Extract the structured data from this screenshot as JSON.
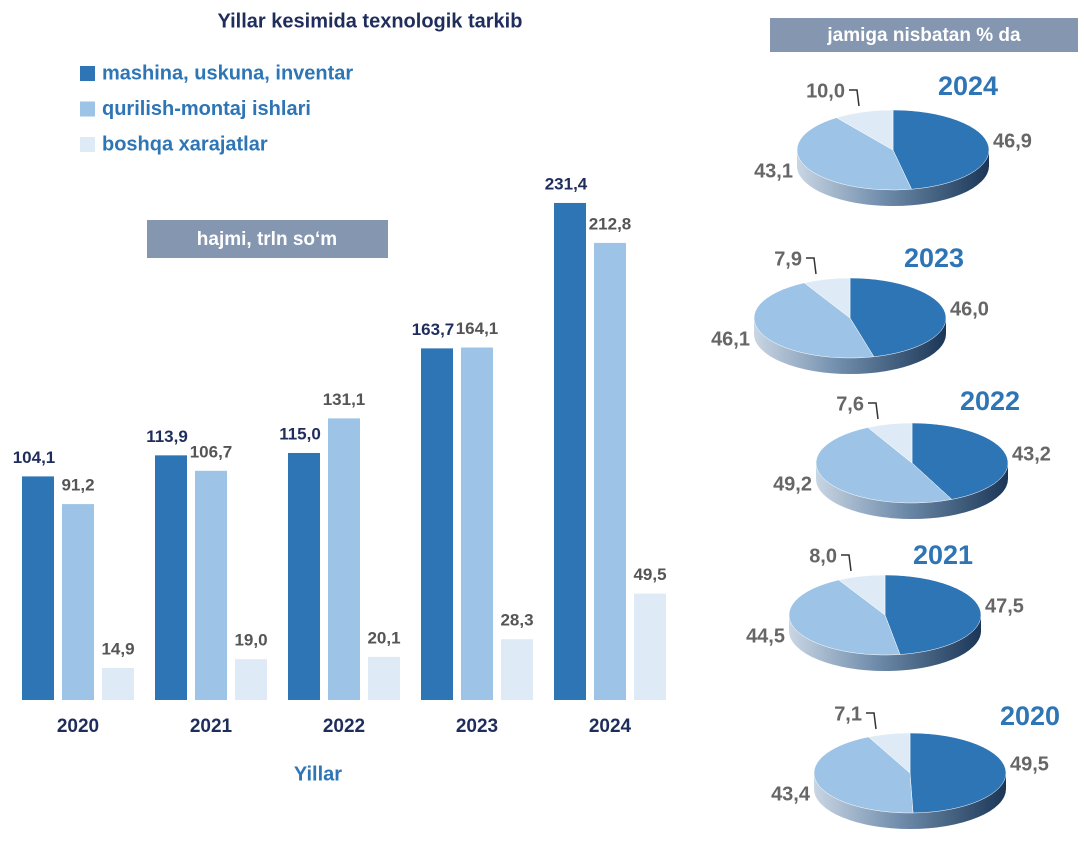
{
  "chart_data": [
    {
      "type": "bar",
      "title": "Yillar kesimida texnologik tarkib",
      "subtitle": "hajmi, trln so‘m",
      "x_label": "Yillar",
      "categories": [
        "2020",
        "2021",
        "2022",
        "2023",
        "2024"
      ],
      "ylim": [
        0,
        250
      ],
      "series": [
        {
          "name": "mashina, uskuna, inventar",
          "color": "#2e75b6",
          "values": [
            104.1,
            113.9,
            115.0,
            163.7,
            231.4
          ],
          "value_labels": [
            "104,1",
            "113,9",
            "115,0",
            "163,7",
            "231,4"
          ]
        },
        {
          "name": "qurilish-montaj ishlari",
          "color": "#9dc3e6",
          "values": [
            91.2,
            106.7,
            131.1,
            164.1,
            212.8
          ],
          "value_labels": [
            "91,2",
            "106,7",
            "131,1",
            "164,1",
            "212,8"
          ]
        },
        {
          "name": "boshqa xarajatlar",
          "color": "#deebf7",
          "values": [
            14.9,
            19.0,
            20.1,
            28.3,
            49.5
          ],
          "value_labels": [
            "14,9",
            "19,0",
            "20,1",
            "28,3",
            "49,5"
          ]
        }
      ]
    },
    {
      "type": "pie",
      "caption": "jamiga nisbatan % da",
      "title": "2024",
      "values": [
        46.9,
        43.1,
        10.0
      ],
      "value_labels": [
        "46,9",
        "43,1",
        "10,0"
      ],
      "colors": [
        "#2e75b6",
        "#9dc3e6",
        "#deebf7"
      ]
    },
    {
      "type": "pie",
      "title": "2023",
      "values": [
        46.0,
        46.1,
        7.9
      ],
      "value_labels": [
        "46,0",
        "46,1",
        "7,9"
      ],
      "colors": [
        "#2e75b6",
        "#9dc3e6",
        "#deebf7"
      ]
    },
    {
      "type": "pie",
      "title": "2022",
      "values": [
        43.2,
        49.2,
        7.6
      ],
      "value_labels": [
        "43,2",
        "49,2",
        "7,6"
      ],
      "colors": [
        "#2e75b6",
        "#9dc3e6",
        "#deebf7"
      ]
    },
    {
      "type": "pie",
      "title": "2021",
      "values": [
        47.5,
        44.5,
        8.0
      ],
      "value_labels": [
        "47,5",
        "44,5",
        "8,0"
      ],
      "colors": [
        "#2e75b6",
        "#9dc3e6",
        "#deebf7"
      ]
    },
    {
      "type": "pie",
      "title": "2020",
      "values": [
        49.5,
        43.4,
        7.1
      ],
      "value_labels": [
        "49,5",
        "43,4",
        "7,1"
      ],
      "colors": [
        "#2e75b6",
        "#9dc3e6",
        "#deebf7"
      ]
    }
  ]
}
